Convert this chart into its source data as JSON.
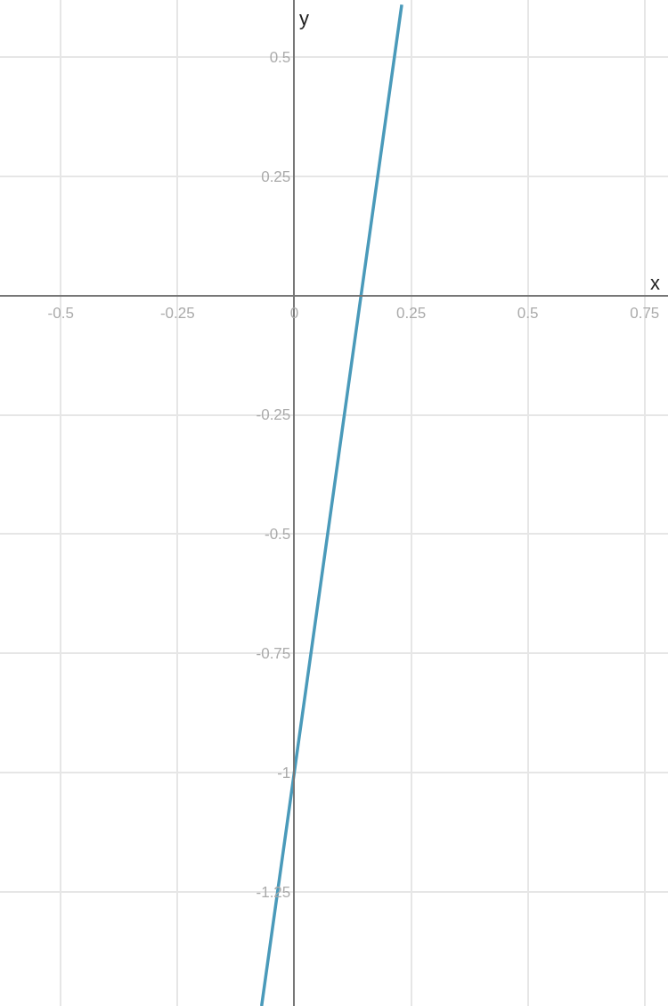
{
  "chart_data": {
    "type": "line",
    "xlabel": "x",
    "ylabel": "y",
    "x": [
      -0.07,
      0,
      0.23
    ],
    "series": [
      {
        "color": "#4a9aba",
        "values": [
          -1.49,
          -1,
          0.61
        ]
      }
    ],
    "xlim": [
      -0.63,
      0.8
    ],
    "ylim": [
      -1.49,
      0.62
    ],
    "xticks": [
      -0.5,
      -0.25,
      0,
      0.25,
      0.5,
      0.75
    ],
    "yticks": [
      -1.25,
      -1,
      -0.75,
      -0.5,
      -0.25,
      0.25,
      0.5
    ],
    "grid": true,
    "marker": "none",
    "line_style": "solid"
  }
}
